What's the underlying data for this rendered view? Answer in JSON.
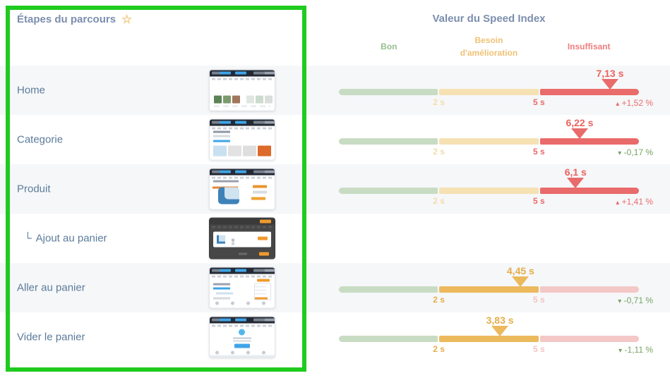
{
  "annotation": {
    "description": "green highlight box around journey steps column",
    "color": "#1fcb1f"
  },
  "icons": {
    "favorite": "☆",
    "trend_up": "▴",
    "trend_down": "▾",
    "substep_corner": "└"
  },
  "left_panel": {
    "title": "Étapes du parcours"
  },
  "right_panel": {
    "title": "Valeur du Speed Index",
    "zones": [
      {
        "label": "Bon",
        "color": "#96bf8e"
      },
      {
        "label": "Besoin d'amélioration",
        "color": "#f0c275"
      },
      {
        "label": "Insuffisant",
        "color": "#ee7d7d"
      }
    ],
    "scale": {
      "good_max_seconds": 2,
      "medium_max_seconds": 5,
      "axis_max_seconds": 8,
      "tick_labels": [
        "2 s",
        "5 s"
      ]
    },
    "colors": {
      "bar_good_pale": "#c8dcc3",
      "bar_medium_pale": "#f6e1b3",
      "bar_medium_active": "#ecb95c",
      "bar_bad_pale": "#f3c8c7",
      "bar_bad_active": "#e96b6b",
      "trend_up_red": "#e96b6b",
      "trend_down_green": "#74a362"
    }
  },
  "rows": [
    {
      "label": "Home",
      "speed_index": "7,13 s",
      "seconds": 7.13,
      "delta": "+1,52 %"
    },
    {
      "label": "Categorie",
      "speed_index": "6,22 s",
      "seconds": 6.22,
      "delta": "-0,17 %"
    },
    {
      "label": "Produit",
      "speed_index": "6,1 s",
      "seconds": 6.1,
      "delta": "+1,41 %"
    },
    {
      "label": "Ajout au panier",
      "prefix": "└",
      "speed_index": null,
      "seconds": null,
      "delta": null
    },
    {
      "label": "Aller au panier",
      "speed_index": "4,45 s",
      "seconds": 4.45,
      "delta": "-0,71 %"
    },
    {
      "label": "Vider le panier",
      "speed_index": "3,83 s",
      "seconds": 3.83,
      "delta": "-1,11 %"
    }
  ]
}
